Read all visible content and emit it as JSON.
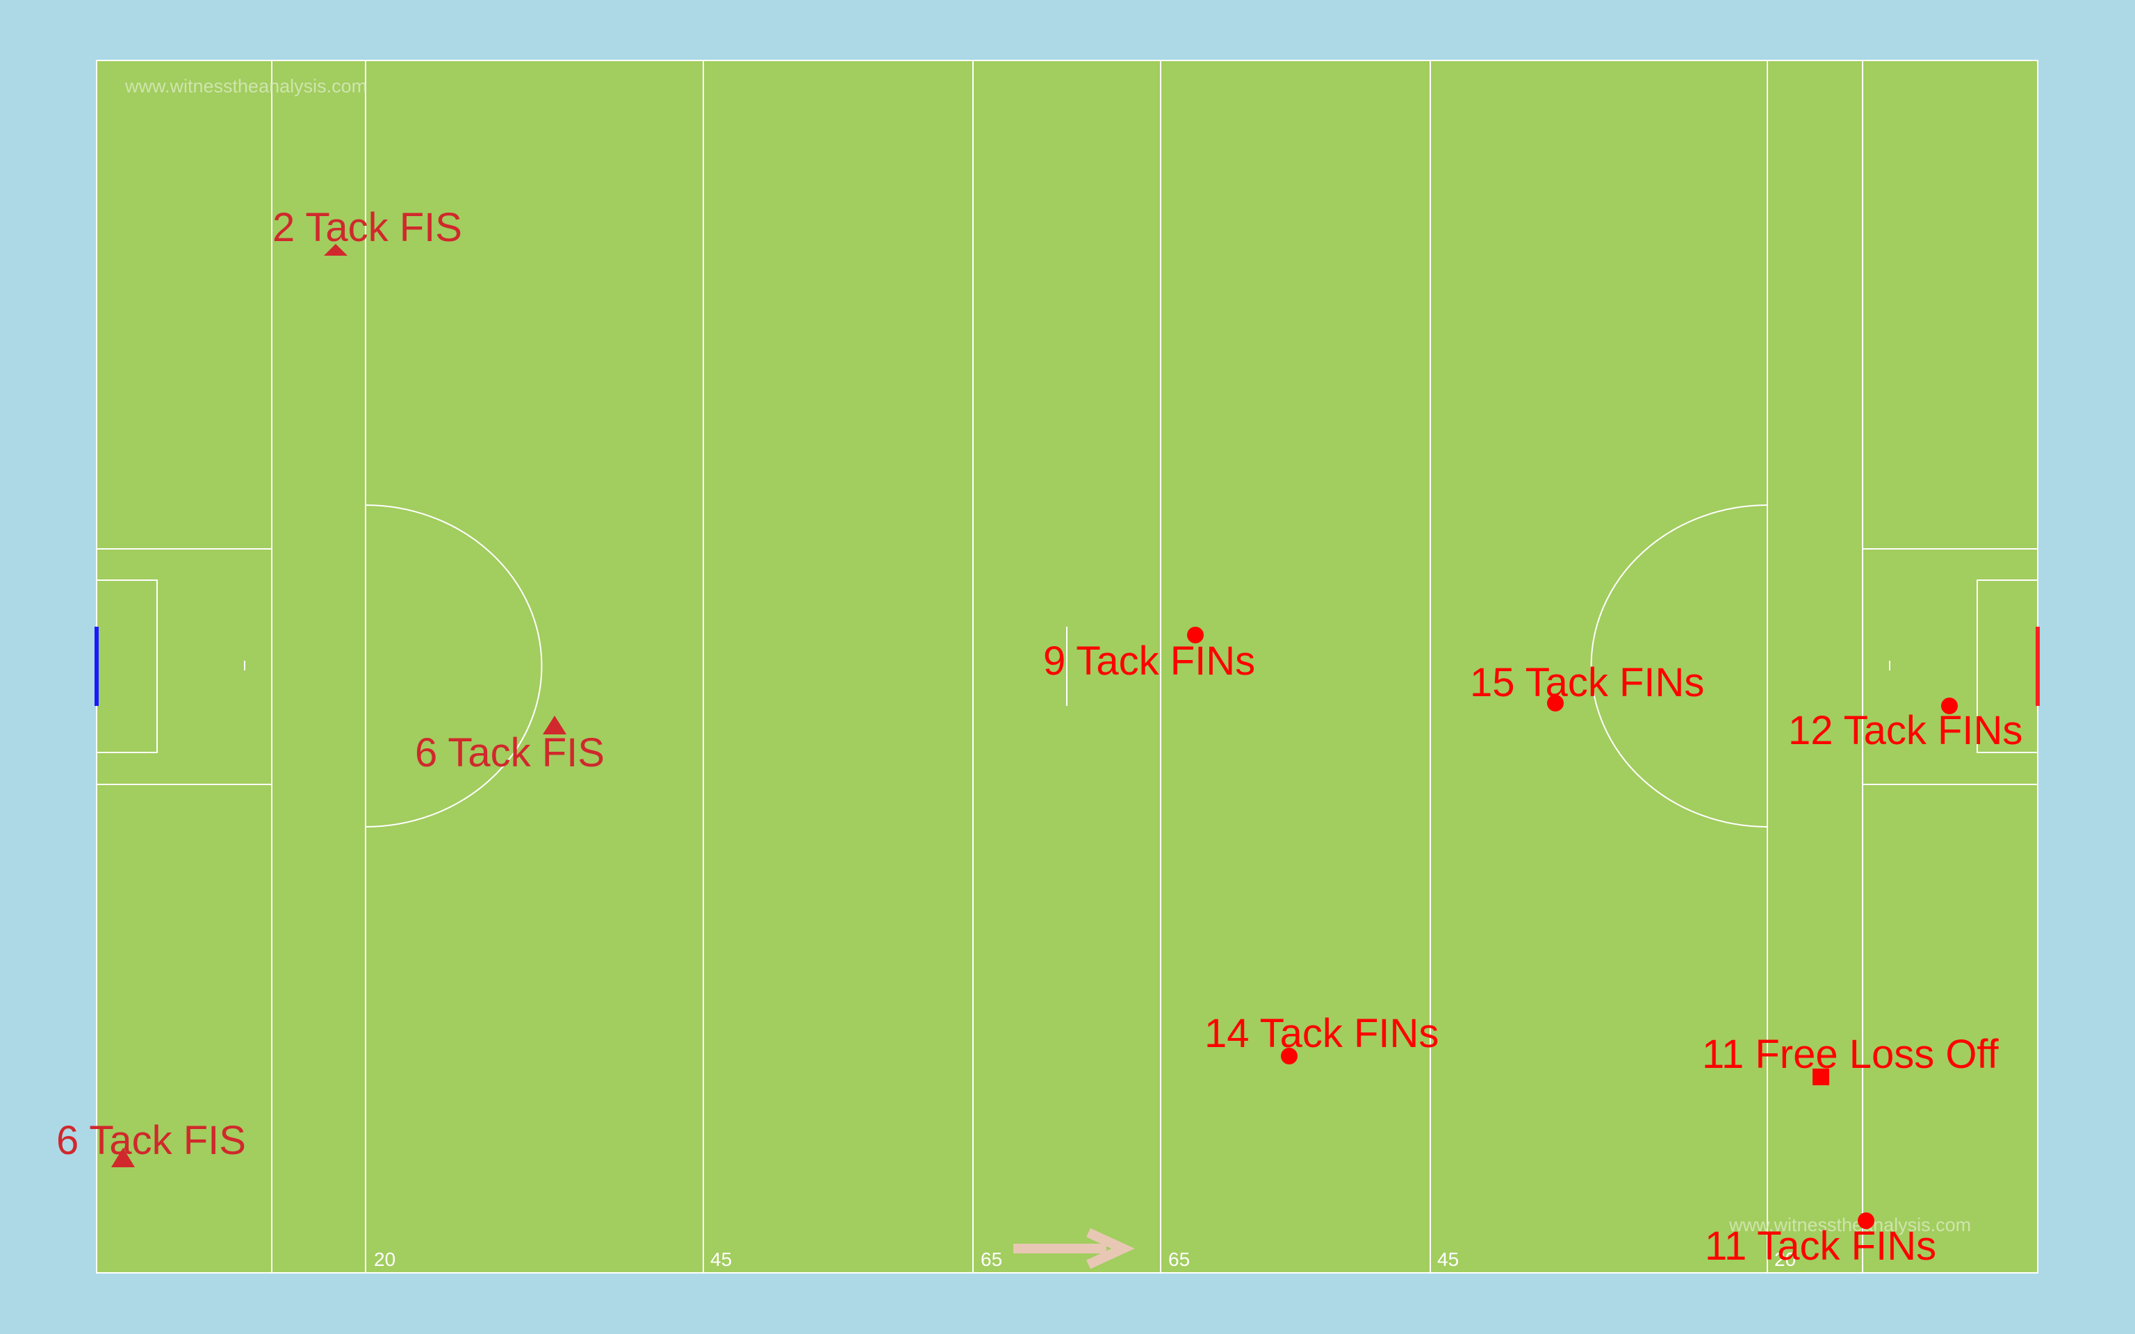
{
  "watermark": "www.witnesstheanalysis.com",
  "colors": {
    "background": "#add8e6",
    "pitch": "#a2cd5f",
    "lines": "#ffffff",
    "left_goal": "#1a1aff",
    "right_goal": "#ff2020",
    "direction_arrow": "#e8c8b4"
  },
  "line_labels": {
    "left_20": "20",
    "left_45": "45",
    "left_65": "65",
    "right_65": "65",
    "right_45": "45",
    "right_20": "20"
  },
  "events": [
    {
      "label": "2 Tack FIS",
      "marker": "triangle",
      "color": "#d0282c"
    },
    {
      "label": "6 Tack FIS",
      "marker": "triangle",
      "color": "#d0282c"
    },
    {
      "label": "6 Tack FIS",
      "marker": "triangle",
      "color": "#d0282c"
    },
    {
      "label": "9 Tack FINs",
      "marker": "circle",
      "color": "#ff0000"
    },
    {
      "label": "15 Tack FINs",
      "marker": "circle",
      "color": "#ff0000"
    },
    {
      "label": "12 Tack FINs",
      "marker": "circle",
      "color": "#ff0000"
    },
    {
      "label": "14 Tack FINs",
      "marker": "circle",
      "color": "#ff0000"
    },
    {
      "label": "11 Free Loss Off",
      "marker": "square",
      "color": "#ff0000"
    },
    {
      "label": "11 Tack FINs",
      "marker": "circle",
      "color": "#ff0000"
    }
  ]
}
